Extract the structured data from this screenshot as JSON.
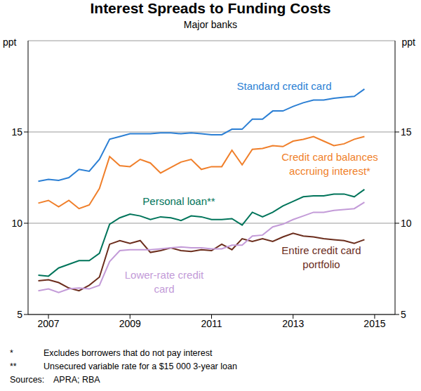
{
  "chart_data": {
    "type": "line",
    "title": "Interest Spreads to Funding Costs",
    "subtitle": "Major banks",
    "y_label": "ppt",
    "x": [
      2006.75,
      2007,
      2007.25,
      2007.5,
      2007.75,
      2008,
      2008.25,
      2008.5,
      2008.75,
      2009,
      2009.25,
      2009.5,
      2009.75,
      2010,
      2010.25,
      2010.5,
      2010.75,
      2011,
      2011.25,
      2011.5,
      2011.75,
      2012,
      2012.25,
      2012.5,
      2012.75,
      2013,
      2013.25,
      2013.5,
      2013.75,
      2014,
      2014.25,
      2014.5,
      2014.75
    ],
    "series": [
      {
        "name": "Standard credit card",
        "color": "#2b7fd4",
        "values": [
          12.3,
          12.4,
          12.35,
          12.5,
          12.95,
          12.85,
          13.5,
          14.6,
          14.75,
          14.9,
          14.9,
          14.9,
          14.95,
          14.95,
          14.9,
          14.95,
          14.9,
          14.85,
          14.85,
          15.15,
          15.15,
          15.7,
          15.7,
          16.15,
          16.15,
          16.4,
          16.6,
          16.75,
          16.75,
          16.85,
          16.9,
          16.95,
          17.35
        ]
      },
      {
        "name": "Credit card balances accruing interest*",
        "color": "#f07f2a",
        "values": [
          11.1,
          11.25,
          10.9,
          11.25,
          10.8,
          11.0,
          11.9,
          13.65,
          13.15,
          13.1,
          13.5,
          13.3,
          12.75,
          13.05,
          13.35,
          13.5,
          12.95,
          13.1,
          13.1,
          14.0,
          13.2,
          14.05,
          14.1,
          14.25,
          14.2,
          14.5,
          14.6,
          14.75,
          14.5,
          14.25,
          14.35,
          14.6,
          14.75
        ]
      },
      {
        "name": "Personal loan**",
        "color": "#00745a",
        "values": [
          7.15,
          7.1,
          7.55,
          7.75,
          7.95,
          7.95,
          8.35,
          9.95,
          10.3,
          10.5,
          10.4,
          10.2,
          10.35,
          10.3,
          10.15,
          10.4,
          10.35,
          10.2,
          10.2,
          10.25,
          9.9,
          10.6,
          10.35,
          10.6,
          10.95,
          11.2,
          11.45,
          11.5,
          11.5,
          11.6,
          11.6,
          11.45,
          11.85
        ]
      },
      {
        "name": "Entire credit card portfolio",
        "color": "#6b2d1c",
        "values": [
          6.85,
          6.9,
          6.75,
          6.45,
          6.3,
          6.6,
          7.05,
          8.85,
          9.05,
          8.9,
          9.05,
          8.4,
          8.5,
          8.65,
          8.5,
          8.45,
          8.55,
          8.5,
          8.85,
          8.55,
          9.15,
          9.0,
          9.15,
          9.0,
          9.25,
          9.45,
          9.3,
          9.25,
          9.15,
          9.1,
          9.05,
          8.9,
          9.1
        ]
      },
      {
        "name": "Lower-rate credit card",
        "color": "#c39bd8",
        "values": [
          6.3,
          6.4,
          6.2,
          6.4,
          6.45,
          6.4,
          6.6,
          7.9,
          8.5,
          8.55,
          8.55,
          8.55,
          8.6,
          8.65,
          8.7,
          8.65,
          8.65,
          8.6,
          8.6,
          8.8,
          8.8,
          9.3,
          9.35,
          9.8,
          9.95,
          10.2,
          10.4,
          10.6,
          10.6,
          10.7,
          10.75,
          10.8,
          11.15
        ]
      }
    ],
    "xlim": [
      2006.5,
      2015.5
    ],
    "xticks": [
      2007,
      2009,
      2011,
      2013,
      2015
    ],
    "ylim": [
      5,
      20
    ],
    "yticks": [
      5,
      10,
      15
    ],
    "grid": true,
    "footnotes": [
      {
        "mark": "*",
        "text": "Excludes borrowers that do not pay interest"
      },
      {
        "mark": "**",
        "text": "Unsecured variable rate for a $15 000 3-year loan"
      }
    ],
    "sources": {
      "label": "Sources:",
      "text": "APRA; RBA"
    }
  }
}
